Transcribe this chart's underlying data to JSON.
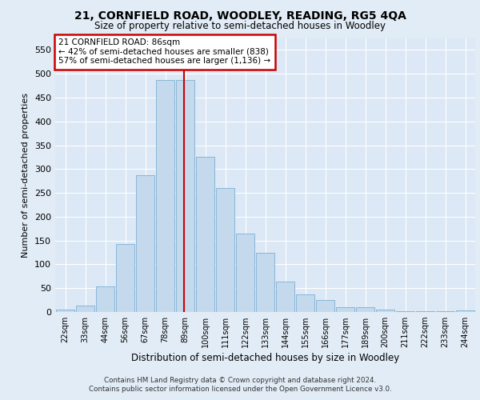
{
  "title": "21, CORNFIELD ROAD, WOODLEY, READING, RG5 4QA",
  "subtitle": "Size of property relative to semi-detached houses in Woodley",
  "xlabel": "Distribution of semi-detached houses by size in Woodley",
  "ylabel": "Number of semi-detached properties",
  "categories": [
    "22sqm",
    "33sqm",
    "44sqm",
    "56sqm",
    "67sqm",
    "78sqm",
    "89sqm",
    "100sqm",
    "111sqm",
    "122sqm",
    "133sqm",
    "144sqm",
    "155sqm",
    "166sqm",
    "177sqm",
    "189sqm",
    "200sqm",
    "211sqm",
    "222sqm",
    "233sqm",
    "244sqm"
  ],
  "values": [
    5,
    13,
    53,
    143,
    287,
    487,
    487,
    325,
    260,
    165,
    125,
    63,
    37,
    25,
    10,
    10,
    5,
    2,
    2,
    2,
    3
  ],
  "bar_color": "#c5d9ed",
  "bar_edge_color": "#7aafd4",
  "vline_color": "#cc0000",
  "vline_x_index": 5.93,
  "annotation_title": "21 CORNFIELD ROAD: 86sqm",
  "annotation_line1": "← 42% of semi-detached houses are smaller (838)",
  "annotation_line2": "57% of semi-detached houses are larger (1,136) →",
  "ann_box_facecolor": "#ffffff",
  "ann_box_edgecolor": "#cc0000",
  "ylim": [
    0,
    575
  ],
  "yticks": [
    0,
    50,
    100,
    150,
    200,
    250,
    300,
    350,
    400,
    450,
    500,
    550
  ],
  "bg_color": "#e2ecf6",
  "axes_bg_color": "#dce8f5",
  "grid_color": "#ffffff",
  "footer_line1": "Contains HM Land Registry data © Crown copyright and database right 2024.",
  "footer_line2": "Contains public sector information licensed under the Open Government Licence v3.0."
}
